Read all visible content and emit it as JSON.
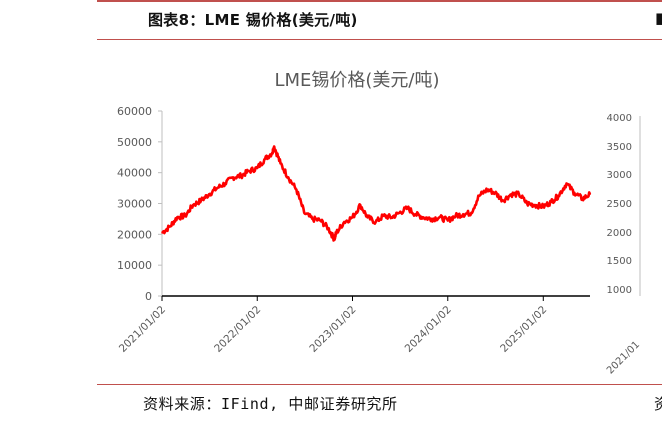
{
  "figure_title": "图表8：LME 锡价格(美元/吨)",
  "source_text": "资料来源：IFind, 中邮证券研究所",
  "chart_data": {
    "type": "line",
    "title": "LME锡价格(美元/吨)",
    "xlabel": "",
    "ylabel": "",
    "ylim": [
      0,
      60000
    ],
    "y_ticks": [
      "0",
      "10000",
      "20000",
      "30000",
      "40000",
      "50000",
      "60000"
    ],
    "x_ticks": [
      "2021/01/02",
      "2022/01/02",
      "2023/01/02",
      "2024/01/02",
      "2025/01/02"
    ],
    "x_range": [
      "2021/01/02",
      "2025/06/30"
    ],
    "grid": false,
    "legend": "none",
    "line_color": "#ff0000",
    "series": [
      {
        "x": [
          "2021/01/02",
          "2021/02/01",
          "2021/03/01",
          "2021/04/01",
          "2021/05/01",
          "2021/06/01",
          "2021/07/01",
          "2021/08/01",
          "2021/09/01",
          "2021/10/01",
          "2021/11/01",
          "2021/12/01",
          "2022/01/02",
          "2022/02/01",
          "2022/03/01",
          "2022/03/08",
          "2022/04/01",
          "2022/05/01",
          "2022/06/01",
          "2022/07/01",
          "2022/08/01",
          "2022/09/01",
          "2022/10/01",
          "2022/10/24",
          "2022/11/01",
          "2022/12/01",
          "2023/01/02",
          "2023/02/01",
          "2023/03/01",
          "2023/04/01",
          "2023/05/01",
          "2023/06/01",
          "2023/07/01",
          "2023/08/01",
          "2023/09/01",
          "2023/10/01",
          "2023/11/01",
          "2023/12/01",
          "2024/01/02",
          "2024/02/01",
          "2024/03/01",
          "2024/04/01",
          "2024/05/01",
          "2024/06/01",
          "2024/07/01",
          "2024/08/01",
          "2024/09/01",
          "2024/10/01",
          "2024/11/01",
          "2024/12/01",
          "2025/01/02",
          "2025/02/01",
          "2025/03/01",
          "2025/04/01",
          "2025/05/01",
          "2025/06/01",
          "2025/06/30"
        ],
        "values": [
          20500,
          22500,
          25500,
          26000,
          29500,
          31000,
          33000,
          35000,
          36500,
          38500,
          39000,
          40500,
          41500,
          44500,
          46500,
          48500,
          43000,
          38500,
          34500,
          27000,
          25000,
          24500,
          22000,
          18500,
          20500,
          24000,
          25500,
          29500,
          25500,
          24000,
          26000,
          25500,
          27000,
          28500,
          26500,
          25500,
          25000,
          25500,
          24500,
          26000,
          26500,
          27000,
          32500,
          34500,
          33500,
          31000,
          33000,
          33000,
          30000,
          29500,
          29000,
          30500,
          32500,
          36500,
          33500,
          31500,
          33000
        ]
      }
    ]
  }
}
